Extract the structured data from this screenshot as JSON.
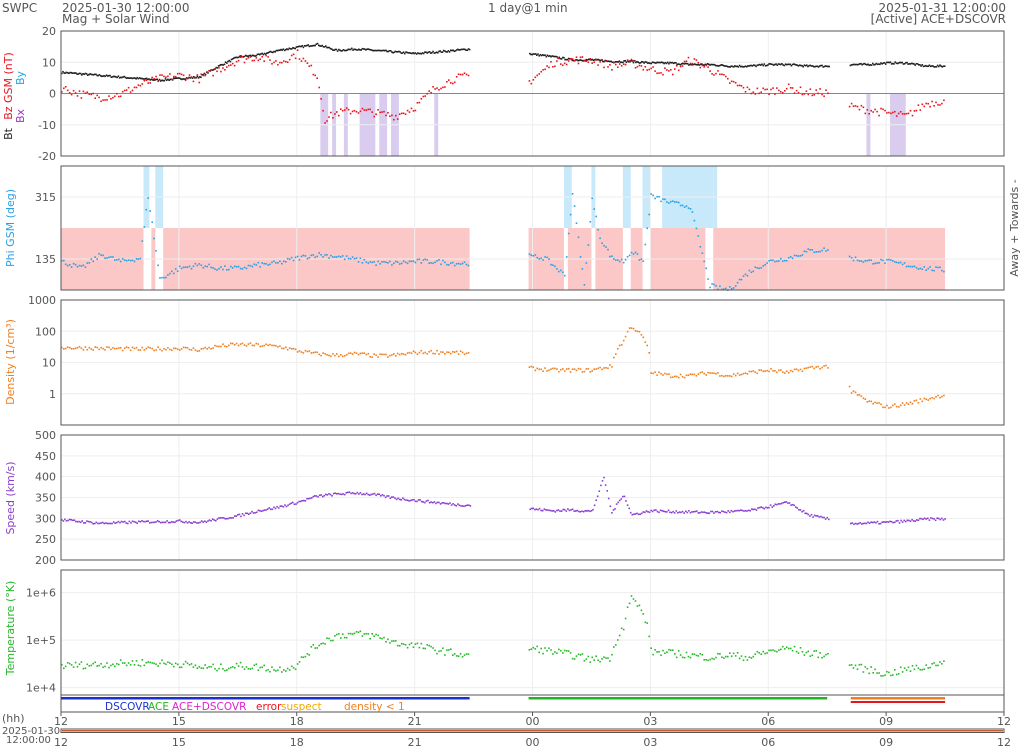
{
  "header": {
    "brand": "SWPC",
    "start_time": "2025-01-30 12:00:00",
    "subtitle": "Mag + Solar Wind",
    "span": "1 day@1 min",
    "end_time": "2025-01-31 12:00:00",
    "source": "[Active] ACE+DSCOVR"
  },
  "colors": {
    "bz": "#e8141c",
    "bt": "#222222",
    "bx": "#9933cc",
    "by": "#1aa7e0",
    "phi": "#2aa0e6",
    "density": "#f07f1e",
    "speed": "#8a3fd1",
    "temperature": "#27b82a",
    "away_shade": "#fcc7c7",
    "towards_shade": "#c8e9fa",
    "southward_shade": "#d9ccee",
    "dscovr": "#1a2fd1",
    "ace": "#22b522",
    "ace_dscovr": "#e01fd6",
    "error": "#e8141c",
    "suspect": "#f0a800",
    "low_density": "#f07f1e"
  },
  "chart_data": [
    {
      "type": "scatter",
      "panel": "mag",
      "ylabel_parts": [
        "Bt",
        "Bz GSM (nT)",
        "Bx",
        "By"
      ],
      "ylim": [
        -20,
        20
      ],
      "y_ticks": [
        "20",
        "10",
        "0",
        "-10",
        "-20"
      ],
      "series": [
        {
          "name": "Bt",
          "x": [
            12.0,
            13.0,
            14.0,
            14.5,
            15.0,
            15.5,
            16.0,
            16.5,
            17.0,
            17.5,
            18.0,
            18.5,
            19.0,
            19.5,
            20.0,
            20.5,
            21.0,
            21.5,
            22.0,
            22.4,
            23.9,
            24.5,
            25.0,
            25.5,
            26.0,
            26.5,
            27.0,
            27.5,
            28.0,
            28.5,
            29.0,
            29.5,
            30.0,
            30.5,
            31.0,
            31.5,
            32.1,
            32.5,
            33.0,
            33.5,
            34.0,
            34.5
          ],
          "y": [
            7,
            6,
            5,
            4.5,
            5,
            5.5,
            9,
            12,
            12.5,
            14,
            15,
            16,
            14,
            14.5,
            14,
            13.5,
            13,
            13.5,
            14,
            14.5,
            13,
            12,
            11,
            11,
            10.5,
            10.5,
            10,
            10,
            9.5,
            9.5,
            9,
            9,
            9.5,
            9.5,
            9,
            9,
            9.5,
            9.5,
            10,
            10,
            9,
            9
          ]
        },
        {
          "name": "Bz GSM",
          "x": [
            12.0,
            12.5,
            13.0,
            13.5,
            14.0,
            14.5,
            15.0,
            15.5,
            16.0,
            16.5,
            17.0,
            17.5,
            18.0,
            18.5,
            18.7,
            19.0,
            19.5,
            20.0,
            20.5,
            21.0,
            21.5,
            22.0,
            22.4,
            23.9,
            24.5,
            25.0,
            25.5,
            26.0,
            26.5,
            27.0,
            27.5,
            28.0,
            28.5,
            29.0,
            29.5,
            30.0,
            30.5,
            31.0,
            31.5,
            32.1,
            32.5,
            33.0,
            33.5,
            34.0,
            34.5
          ],
          "y": [
            2,
            0,
            -1,
            0,
            3,
            5,
            6,
            5,
            8,
            11,
            12,
            10,
            13,
            6,
            -8,
            -6,
            -5,
            -6,
            -7,
            -4,
            2,
            5,
            6,
            4,
            10,
            11,
            11,
            9,
            10,
            8,
            7,
            11,
            8,
            4,
            1,
            1,
            2,
            0.5,
            0.5,
            -4,
            -5,
            -6,
            -7,
            -3,
            -2
          ]
        }
      ],
      "shaded_bz_south_hours": [
        [
          18.6,
          18.8
        ],
        [
          18.9,
          19.0
        ],
        [
          19.2,
          19.3
        ],
        [
          19.6,
          20.0
        ],
        [
          20.1,
          20.3
        ],
        [
          20.4,
          20.6
        ],
        [
          21.5,
          21.6
        ],
        [
          32.5,
          32.6
        ],
        [
          33.1,
          33.5
        ]
      ]
    },
    {
      "type": "scatter",
      "panel": "phi",
      "ylabel": "Phi GSM (deg)",
      "right_label": "Away +   Towards -",
      "y_ticks": [
        "315",
        "135"
      ],
      "ylim": [
        45,
        405
      ],
      "series": [
        {
          "name": "Phi GSM",
          "x": [
            12.0,
            12.5,
            13.0,
            13.5,
            14.0,
            14.2,
            14.5,
            15.0,
            15.5,
            16.0,
            16.5,
            17.0,
            17.5,
            18.0,
            18.5,
            19.0,
            19.5,
            20.0,
            20.5,
            21.0,
            21.5,
            22.0,
            22.4,
            23.9,
            24.3,
            24.8,
            25.0,
            25.3,
            25.5,
            25.7,
            26.0,
            26.3,
            26.5,
            26.8,
            27.0,
            27.5,
            28.0,
            28.5,
            28.8,
            29.0,
            29.5,
            30.0,
            30.5,
            31.0,
            31.5,
            32.1,
            32.5,
            33.0,
            33.5,
            34.0,
            34.5
          ],
          "y": [
            130,
            110,
            150,
            130,
            140,
            320,
            80,
            110,
            120,
            110,
            110,
            120,
            125,
            140,
            150,
            145,
            135,
            125,
            125,
            130,
            130,
            125,
            125,
            145,
            140,
            90,
            330,
            60,
            310,
            200,
            140,
            130,
            160,
            130,
            320,
            300,
            290,
            60,
            50,
            50,
            100,
            130,
            140,
            160,
            165,
            140,
            130,
            130,
            120,
            110,
            105
          ]
        }
      ],
      "away_hours": [
        [
          12.0,
          14.1
        ],
        [
          14.3,
          14.4
        ],
        [
          14.6,
          22.4
        ],
        [
          23.9,
          24.8
        ],
        [
          24.9,
          25.5
        ],
        [
          25.6,
          26.3
        ],
        [
          26.5,
          26.8
        ],
        [
          27.0,
          28.4
        ],
        [
          28.6,
          33.0
        ],
        [
          33.0,
          34.5
        ]
      ],
      "towards_hours": [
        [
          14.1,
          14.25
        ],
        [
          14.4,
          14.6
        ],
        [
          24.8,
          25.0
        ],
        [
          25.5,
          25.6
        ],
        [
          26.3,
          26.5
        ],
        [
          26.8,
          27.0
        ],
        [
          27.3,
          28.6
        ],
        [
          28.6,
          28.7
        ]
      ]
    },
    {
      "type": "scatter",
      "panel": "density",
      "ylabel": "Density (1/cm³)",
      "log_scale": true,
      "ylim": [
        0.1,
        1000
      ],
      "y_ticks": [
        "1000",
        "100",
        "10",
        "1"
      ],
      "series": [
        {
          "name": "Density",
          "x": [
            12.0,
            13.0,
            14.0,
            15.0,
            15.5,
            16.0,
            16.5,
            17.0,
            17.5,
            18.0,
            18.5,
            19.0,
            19.5,
            20.0,
            20.5,
            21.0,
            21.5,
            22.0,
            22.4,
            23.9,
            24.5,
            25.0,
            25.5,
            26.0,
            26.3,
            26.5,
            27.0,
            27.5,
            28.0,
            28.5,
            29.0,
            29.5,
            30.0,
            30.5,
            31.0,
            31.5,
            32.1,
            32.5,
            33.0,
            33.5,
            34.0,
            34.5
          ],
          "y": [
            32,
            30,
            28,
            30,
            27,
            35,
            40,
            38,
            35,
            25,
            20,
            18,
            20,
            17,
            18,
            22,
            23,
            22,
            20,
            7,
            6,
            6,
            6,
            8,
            50,
            150,
            5,
            4,
            4,
            5,
            4,
            5,
            6,
            5,
            7,
            8,
            1.2,
            0.6,
            0.4,
            0.5,
            0.7,
            1.0
          ]
        }
      ]
    },
    {
      "type": "scatter",
      "panel": "speed",
      "ylabel": "Speed (km/s)",
      "ylim": [
        200,
        500
      ],
      "y_ticks": [
        "500",
        "450",
        "400",
        "350",
        "300",
        "250",
        "200"
      ],
      "series": [
        {
          "name": "Speed",
          "x": [
            12.0,
            13.0,
            14.0,
            15.0,
            15.5,
            16.0,
            16.5,
            17.0,
            17.5,
            18.0,
            18.5,
            19.0,
            19.5,
            20.0,
            20.5,
            21.0,
            21.5,
            22.0,
            22.4,
            23.9,
            24.5,
            25.0,
            25.5,
            25.8,
            26.0,
            26.3,
            26.5,
            27.0,
            27.5,
            28.0,
            28.5,
            29.0,
            29.5,
            30.0,
            30.5,
            31.0,
            31.5,
            32.1,
            32.5,
            33.0,
            33.5,
            34.0,
            34.5
          ],
          "y": [
            298,
            290,
            293,
            295,
            292,
            300,
            308,
            320,
            328,
            340,
            355,
            360,
            363,
            358,
            350,
            345,
            340,
            335,
            333,
            325,
            320,
            322,
            318,
            400,
            315,
            360,
            310,
            320,
            318,
            317,
            316,
            318,
            320,
            330,
            340,
            310,
            300,
            290,
            290,
            292,
            295,
            300,
            300
          ]
        }
      ]
    },
    {
      "type": "scatter",
      "panel": "temperature",
      "ylabel": "Temperature (°K)",
      "log_scale": true,
      "ylim": [
        7000,
        3000000
      ],
      "y_ticks": [
        "1e+6",
        "1e+5",
        "1e+4"
      ],
      "series": [
        {
          "name": "Temperature",
          "x": [
            12.0,
            13.0,
            14.0,
            15.0,
            15.5,
            16.0,
            16.5,
            17.0,
            17.5,
            18.0,
            18.5,
            19.0,
            19.5,
            20.0,
            20.5,
            21.0,
            21.5,
            22.0,
            22.4,
            23.9,
            24.5,
            25.0,
            25.5,
            26.0,
            26.3,
            26.5,
            27.0,
            27.5,
            28.0,
            28.5,
            29.0,
            29.5,
            30.0,
            30.5,
            31.0,
            31.5,
            32.1,
            32.5,
            33.0,
            33.5,
            34.0,
            34.5
          ],
          "y": [
            30000,
            32000,
            35000,
            33000,
            28000,
            27000,
            30000,
            28000,
            25000,
            30000,
            80000,
            130000,
            140000,
            125000,
            90000,
            80000,
            65000,
            55000,
            45000,
            70000,
            60000,
            50000,
            40000,
            45000,
            200000,
            800000,
            60000,
            55000,
            50000,
            45000,
            50000,
            45000,
            60000,
            70000,
            55000,
            50000,
            30000,
            25000,
            20000,
            25000,
            28000,
            40000
          ]
        }
      ]
    }
  ],
  "source_legend": [
    {
      "label": "DSCOVR",
      "color": "#1a2fd1"
    },
    {
      "label": "ACE",
      "color": "#22b522"
    },
    {
      "label": "ACE+DSCOVR",
      "color": "#e01fd6"
    },
    {
      "label": "error",
      "color": "#e8141c"
    },
    {
      "label": "suspect",
      "color": "#f0a800"
    },
    {
      "label": "density < 1",
      "color": "#f07f1e"
    }
  ],
  "source_bars": [
    {
      "from": 12.0,
      "to": 22.4,
      "color": "#1a2fd1"
    },
    {
      "from": 23.9,
      "to": 31.5,
      "color": "#22b522"
    },
    {
      "from": 32.1,
      "to": 34.5,
      "color": "#f07f1e"
    }
  ],
  "xaxis": {
    "hh_label": "(hh)",
    "date_label_1": "2025-01-30",
    "date_label_2": "12:00:00",
    "ticks": [
      {
        "h": 12,
        "label": "12"
      },
      {
        "h": 15,
        "label": "15"
      },
      {
        "h": 18,
        "label": "18"
      },
      {
        "h": 21,
        "label": "21"
      },
      {
        "h": 24,
        "label": "00"
      },
      {
        "h": 27,
        "label": "03"
      },
      {
        "h": 30,
        "label": "06"
      },
      {
        "h": 33,
        "label": "09"
      },
      {
        "h": 36,
        "label": "12"
      }
    ]
  }
}
